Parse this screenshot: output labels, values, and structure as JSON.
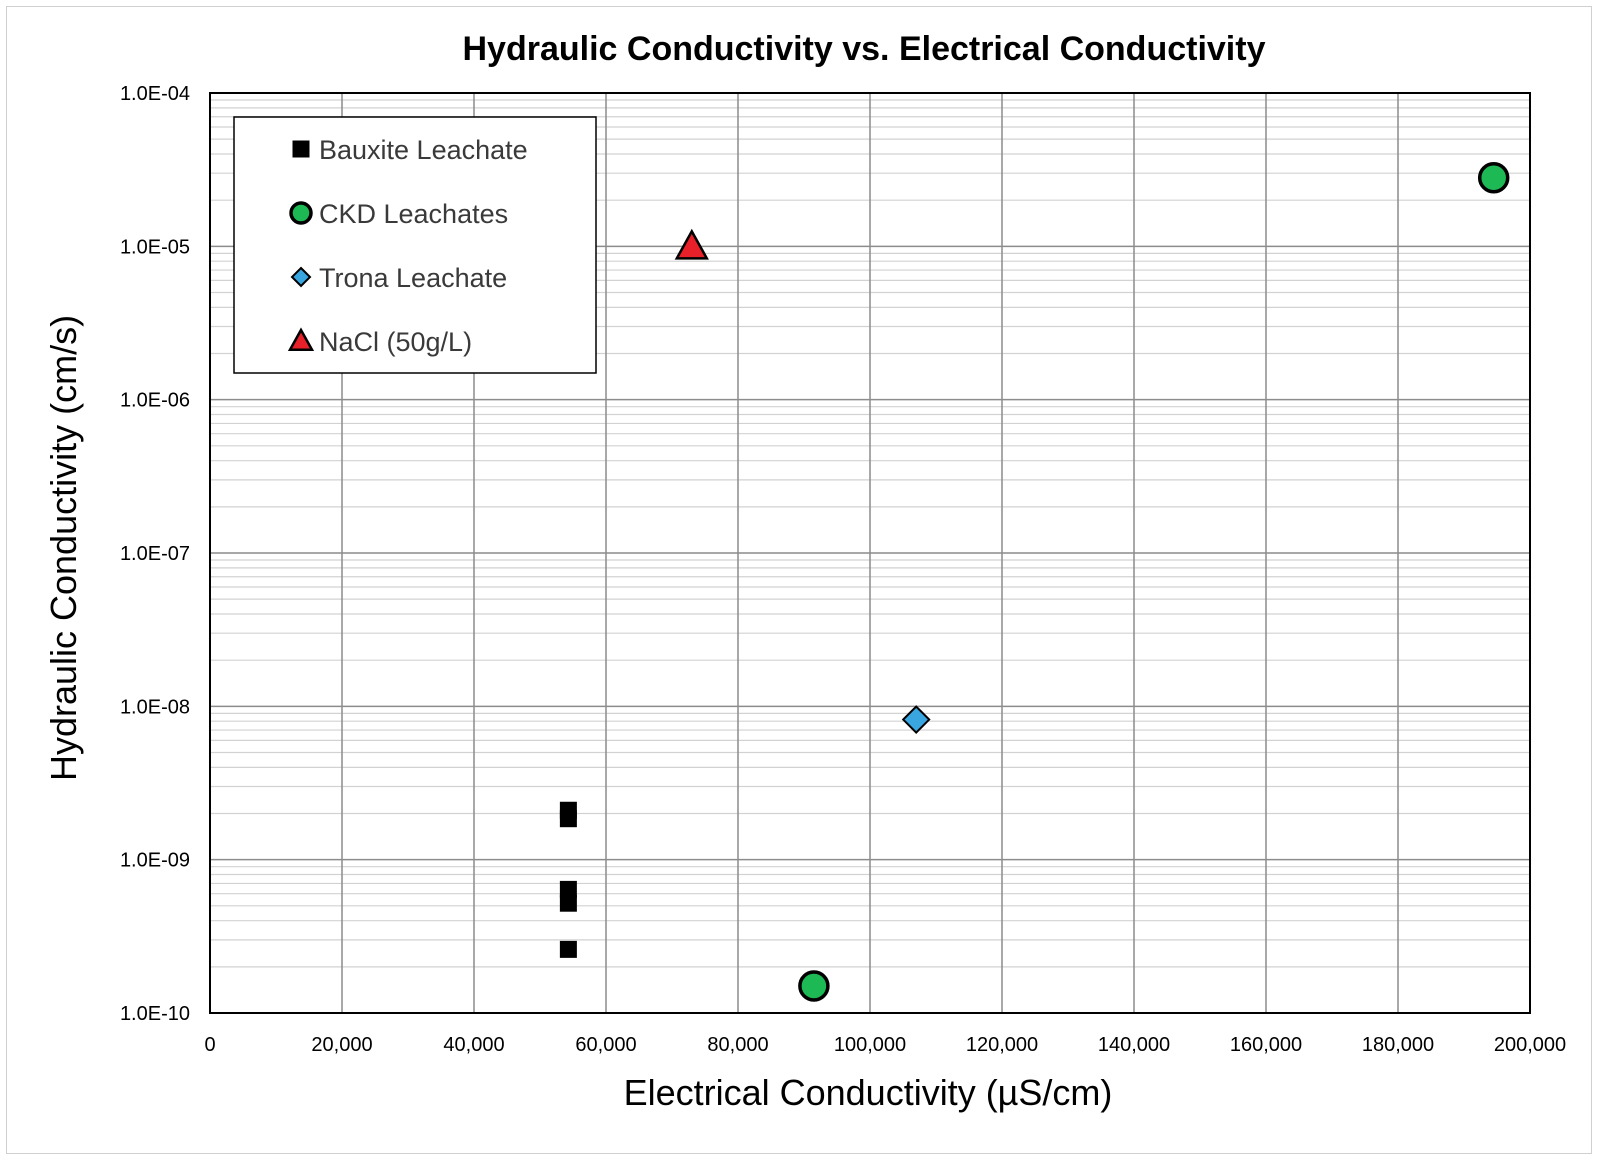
{
  "chart_data": {
    "type": "scatter",
    "title": "Hydraulic Conductivity vs. Electrical Conductivity",
    "xlabel": "Electrical Conductivity (µS/cm)",
    "ylabel": "Hydraulic Conductivity (cm/s)",
    "xlim": [
      0,
      200000
    ],
    "ylim": [
      1e-10,
      0.0001
    ],
    "yscale": "log",
    "grid": true,
    "legend_position": "top-left",
    "x_ticks": [
      {
        "value": 0,
        "label": "0"
      },
      {
        "value": 20000,
        "label": "20,000"
      },
      {
        "value": 40000,
        "label": "40,000"
      },
      {
        "value": 60000,
        "label": "60,000"
      },
      {
        "value": 80000,
        "label": "80,000"
      },
      {
        "value": 100000,
        "label": "100,000"
      },
      {
        "value": 120000,
        "label": "120,000"
      },
      {
        "value": 140000,
        "label": "140,000"
      },
      {
        "value": 160000,
        "label": "160,000"
      },
      {
        "value": 180000,
        "label": "180,000"
      },
      {
        "value": 200000,
        "label": "200,000"
      }
    ],
    "y_ticks": [
      {
        "value": 0.0001,
        "label": "1.0E-04"
      },
      {
        "value": 1e-05,
        "label": "1.0E-05"
      },
      {
        "value": 1e-06,
        "label": "1.0E-06"
      },
      {
        "value": 1e-07,
        "label": "1.0E-07"
      },
      {
        "value": 1e-08,
        "label": "1.0E-08"
      },
      {
        "value": 1e-09,
        "label": "1.0E-09"
      },
      {
        "value": 1e-10,
        "label": "1.0E-10"
      }
    ],
    "series": [
      {
        "name": "Bauxite Leachate",
        "marker": "square",
        "color": "#000000",
        "points": [
          {
            "x": 54300,
            "y": 2.1e-09
          },
          {
            "x": 54300,
            "y": 1.85e-09
          },
          {
            "x": 54300,
            "y": 6.4e-10
          },
          {
            "x": 54300,
            "y": 5.2e-10
          },
          {
            "x": 54300,
            "y": 2.6e-10
          }
        ]
      },
      {
        "name": "CKD Leachates",
        "marker": "circle",
        "color": "#1db954",
        "points": [
          {
            "x": 91500,
            "y": 1.5e-10
          },
          {
            "x": 194500,
            "y": 2.8e-05
          }
        ]
      },
      {
        "name": "Trona Leachate",
        "marker": "diamond",
        "color": "#3aa6e0",
        "points": [
          {
            "x": 107000,
            "y": 8.2e-09
          }
        ]
      },
      {
        "name": "NaCl (50g/L)",
        "marker": "triangle",
        "color": "#e8202a",
        "points": [
          {
            "x": 73000,
            "y": 1e-05
          }
        ]
      }
    ]
  }
}
